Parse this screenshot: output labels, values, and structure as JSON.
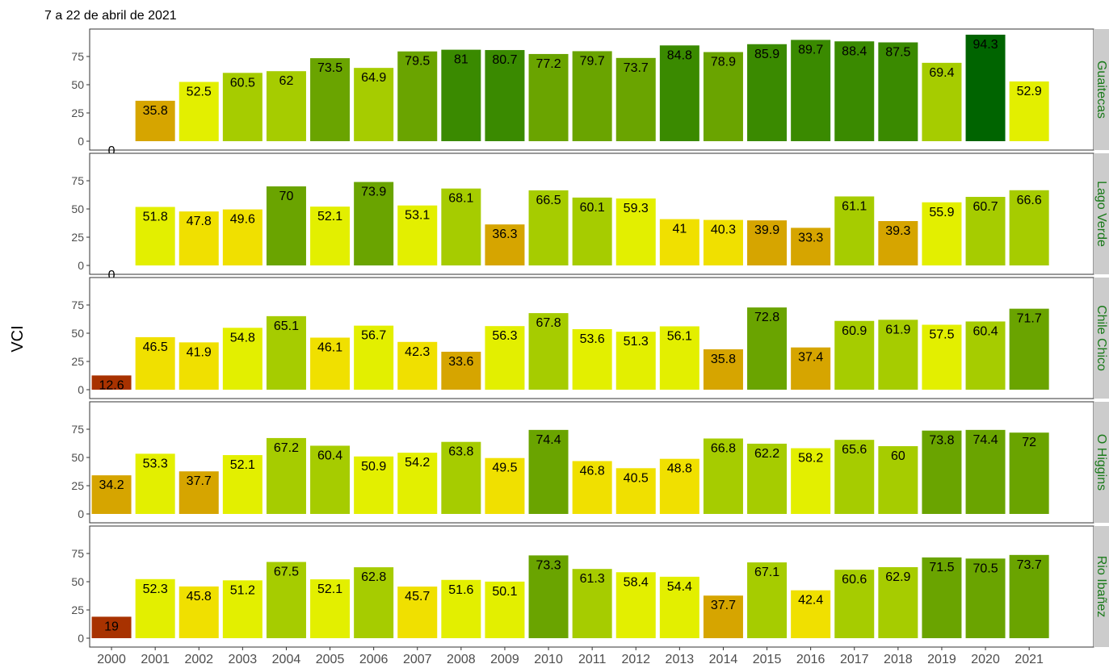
{
  "chart_data": {
    "type": "bar",
    "title": "7 a 22 de abril de 2021",
    "ylabel": "VCI",
    "xlabel": "",
    "ylim": [
      0,
      94.3
    ],
    "yticks": [
      0,
      25,
      50,
      75
    ],
    "grid": false,
    "categories": [
      "2000",
      "2001",
      "2002",
      "2003",
      "2004",
      "2005",
      "2006",
      "2007",
      "2008",
      "2009",
      "2010",
      "2011",
      "2012",
      "2013",
      "2014",
      "2015",
      "2016",
      "2017",
      "2018",
      "2019",
      "2020",
      "2021"
    ],
    "facets": [
      {
        "name": "Guaitecas",
        "values": [
          0,
          35.8,
          52.5,
          60.5,
          62,
          73.5,
          64.9,
          79.5,
          81,
          80.7,
          77.2,
          79.7,
          73.7,
          84.8,
          78.9,
          85.9,
          89.7,
          88.4,
          87.5,
          69.4,
          94.3,
          52.9
        ]
      },
      {
        "name": "Lago Verde",
        "values": [
          0,
          51.8,
          47.8,
          49.6,
          70,
          52.1,
          73.9,
          53.1,
          68.1,
          36.3,
          66.5,
          60.1,
          59.3,
          41,
          40.3,
          39.9,
          33.3,
          61.1,
          39.3,
          55.9,
          60.7,
          66.6
        ]
      },
      {
        "name": "Chile Chico",
        "values": [
          12.6,
          46.5,
          41.9,
          54.8,
          65.1,
          46.1,
          56.7,
          42.3,
          33.6,
          56.3,
          67.8,
          53.6,
          51.3,
          56.1,
          35.8,
          72.8,
          37.4,
          60.9,
          61.9,
          57.5,
          60.4,
          71.7
        ]
      },
      {
        "name": "O Higgins",
        "values": [
          34.2,
          53.3,
          37.7,
          52.1,
          67.2,
          60.4,
          50.9,
          54.2,
          63.8,
          49.5,
          74.4,
          46.8,
          40.5,
          48.8,
          66.8,
          62.2,
          58.2,
          65.6,
          60,
          73.8,
          74.4,
          72
        ]
      },
      {
        "name": "Rio Ibañez",
        "values": [
          19,
          52.3,
          45.8,
          51.2,
          67.5,
          52.1,
          62.8,
          45.7,
          51.6,
          50.1,
          73.3,
          61.3,
          58.4,
          54.4,
          37.7,
          67.1,
          42.4,
          60.6,
          62.9,
          71.5,
          70.5,
          73.7
        ]
      }
    ]
  },
  "colors": {
    "panel_border": "#333333",
    "strip_bg": "#cccccc",
    "strip_text": "#1a7a1a",
    "scale": [
      {
        "min": 0,
        "color": "#a83200"
      },
      {
        "min": 30,
        "color": "#d6a500"
      },
      {
        "min": 40,
        "color": "#f0e000"
      },
      {
        "min": 50,
        "color": "#e3ef00"
      },
      {
        "min": 60,
        "color": "#a6cc00"
      },
      {
        "min": 70,
        "color": "#6aa400"
      },
      {
        "min": 80,
        "color": "#3a8a00"
      },
      {
        "min": 90,
        "color": "#006400"
      }
    ]
  }
}
